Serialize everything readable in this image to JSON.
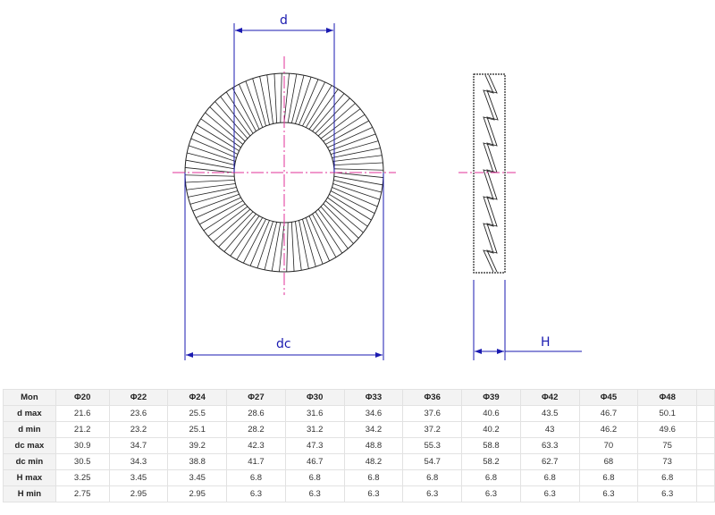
{
  "drawing": {
    "labels": {
      "d": "d",
      "dc": "dc",
      "H": "H"
    },
    "colors": {
      "dimension": "#1a1ab0",
      "centerline": "#e0309a",
      "outline": "#222222"
    }
  },
  "table": {
    "header": [
      "Mon",
      "Φ20",
      "Φ22",
      "Φ24",
      "Φ27",
      "Φ30",
      "Φ33",
      "Φ36",
      "Φ39",
      "Φ42",
      "Φ45",
      "Φ48"
    ],
    "rows": [
      {
        "label": "d max",
        "values": [
          "21.6",
          "23.6",
          "25.5",
          "28.6",
          "31.6",
          "34.6",
          "37.6",
          "40.6",
          "43.5",
          "46.7",
          "50.1"
        ]
      },
      {
        "label": "d min",
        "values": [
          "21.2",
          "23.2",
          "25.1",
          "28.2",
          "31.2",
          "34.2",
          "37.2",
          "40.2",
          "43",
          "46.2",
          "49.6"
        ]
      },
      {
        "label": "dc max",
        "values": [
          "30.9",
          "34.7",
          "39.2",
          "42.3",
          "47.3",
          "48.8",
          "55.3",
          "58.8",
          "63.3",
          "70",
          "75"
        ]
      },
      {
        "label": "dc min",
        "values": [
          "30.5",
          "34.3",
          "38.8",
          "41.7",
          "46.7",
          "48.2",
          "54.7",
          "58.2",
          "62.7",
          "68",
          "73"
        ]
      },
      {
        "label": "H max",
        "values": [
          "3.25",
          "3.45",
          "3.45",
          "6.8",
          "6.8",
          "6.8",
          "6.8",
          "6.8",
          "6.8",
          "6.8",
          "6.8"
        ]
      },
      {
        "label": "H min",
        "values": [
          "2.75",
          "2.95",
          "2.95",
          "6.3",
          "6.3",
          "6.3",
          "6.3",
          "6.3",
          "6.3",
          "6.3",
          "6.3"
        ]
      }
    ]
  }
}
